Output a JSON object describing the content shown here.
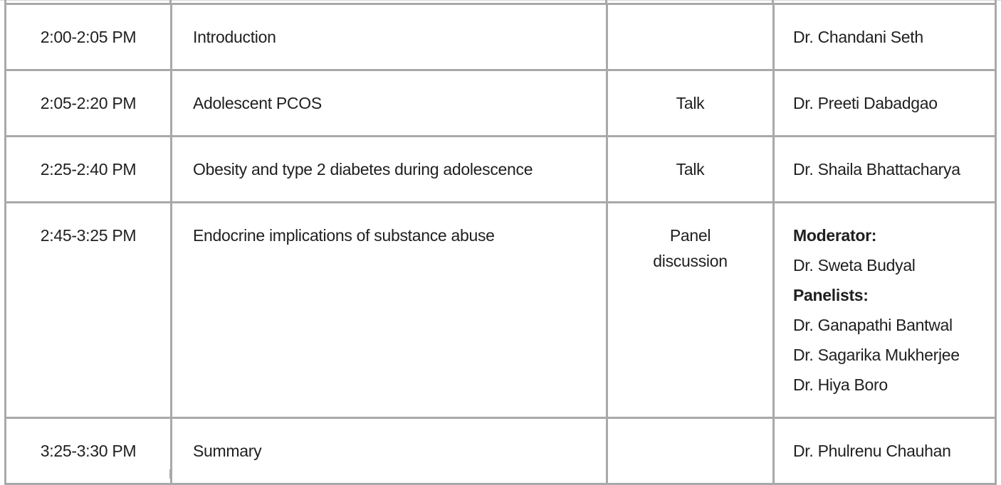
{
  "rows": [
    {
      "time": "2:00-2:05 PM",
      "topic": "Introduction",
      "type": "",
      "speaker": "Dr. Chandani Seth"
    },
    {
      "time": "2:05-2:20 PM",
      "topic": "Adolescent PCOS",
      "type": "Talk",
      "speaker": "Dr. Preeti Dabadgao"
    },
    {
      "time": "2:25-2:40 PM",
      "topic": "Obesity and type 2 diabetes during adolescence",
      "type": "Talk",
      "speaker": "Dr. Shaila Bhattacharya"
    },
    {
      "time": "2:45-3:25 PM",
      "topic": "Endocrine implications of substance abuse",
      "type_lines": [
        "Panel",
        "discussion"
      ],
      "moderator_label": "Moderator:",
      "moderator": "Dr. Sweta Budyal",
      "panelists_label": "Panelists:",
      "panelists": [
        "Dr. Ganapathi Bantwal",
        "Dr. Sagarika Mukherjee",
        "Dr. Hiya Boro"
      ]
    },
    {
      "time": "3:25-3:30 PM",
      "topic": "Summary",
      "type": "",
      "speaker": "Dr. Phulrenu Chauhan"
    }
  ],
  "colors": {
    "border": "#a9a9ab",
    "text": "#1f1f1f"
  }
}
